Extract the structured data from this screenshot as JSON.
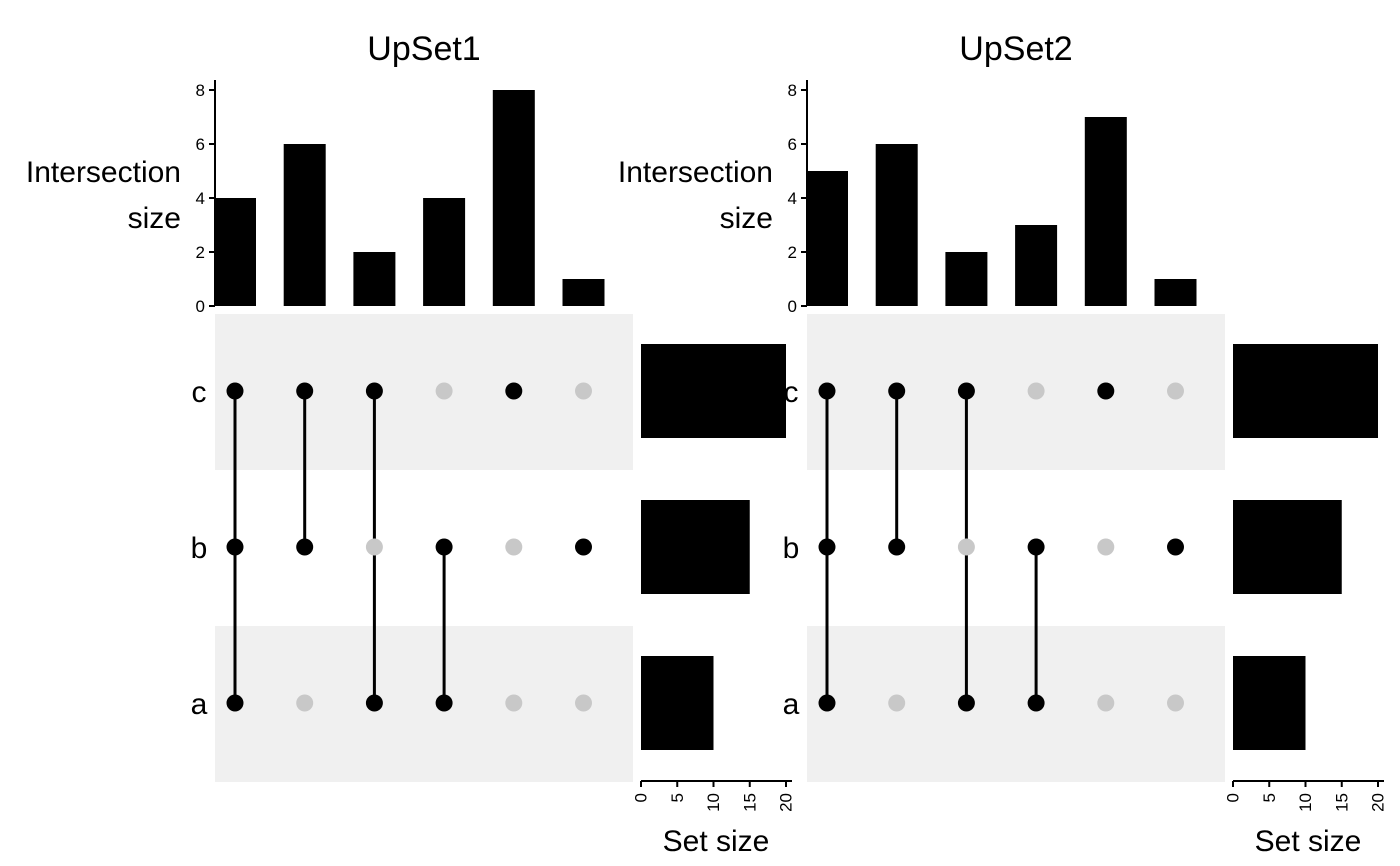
{
  "chart_data": [
    {
      "type": "bar",
      "title": "UpSet1",
      "ylabel_line1": "Intersection",
      "ylabel_line2": "size",
      "xlabel": "Set size",
      "sets": [
        "c",
        "b",
        "a"
      ],
      "intersection_sizes": [
        4,
        6,
        2,
        4,
        8,
        1
      ],
      "intersection_membership": [
        [
          "c",
          "b",
          "a"
        ],
        [
          "c",
          "b"
        ],
        [
          "c",
          "a"
        ],
        [
          "b",
          "a"
        ],
        [
          "c"
        ],
        [
          "b"
        ]
      ],
      "intersection_ylim": [
        0,
        8
      ],
      "intersection_yticks": [
        0,
        2,
        4,
        6,
        8
      ],
      "set_sizes": [
        20,
        15,
        10
      ],
      "set_size_xlim": [
        0,
        20
      ],
      "set_size_xticks": [
        0,
        5,
        10,
        15,
        20
      ],
      "colors": {
        "bar": "#000000",
        "dot_active": "#000000",
        "dot_inactive": "#c8c8c8",
        "band": "#f0f0f0"
      }
    },
    {
      "type": "bar",
      "title": "UpSet2",
      "ylabel_line1": "Intersection",
      "ylabel_line2": "size",
      "xlabel": "Set size",
      "sets": [
        "c",
        "b",
        "a"
      ],
      "intersection_sizes": [
        5,
        6,
        2,
        3,
        7,
        1
      ],
      "intersection_membership": [
        [
          "c",
          "b",
          "a"
        ],
        [
          "c",
          "b"
        ],
        [
          "c",
          "a"
        ],
        [
          "b",
          "a"
        ],
        [
          "c"
        ],
        [
          "b"
        ]
      ],
      "intersection_ylim": [
        0,
        8
      ],
      "intersection_yticks": [
        0,
        2,
        4,
        6,
        8
      ],
      "set_sizes": [
        20,
        15,
        10
      ],
      "set_size_xlim": [
        0,
        20
      ],
      "set_size_xticks": [
        0,
        5,
        10,
        15,
        20
      ],
      "colors": {
        "bar": "#000000",
        "dot_active": "#000000",
        "dot_inactive": "#c8c8c8",
        "band": "#f0f0f0"
      }
    }
  ]
}
